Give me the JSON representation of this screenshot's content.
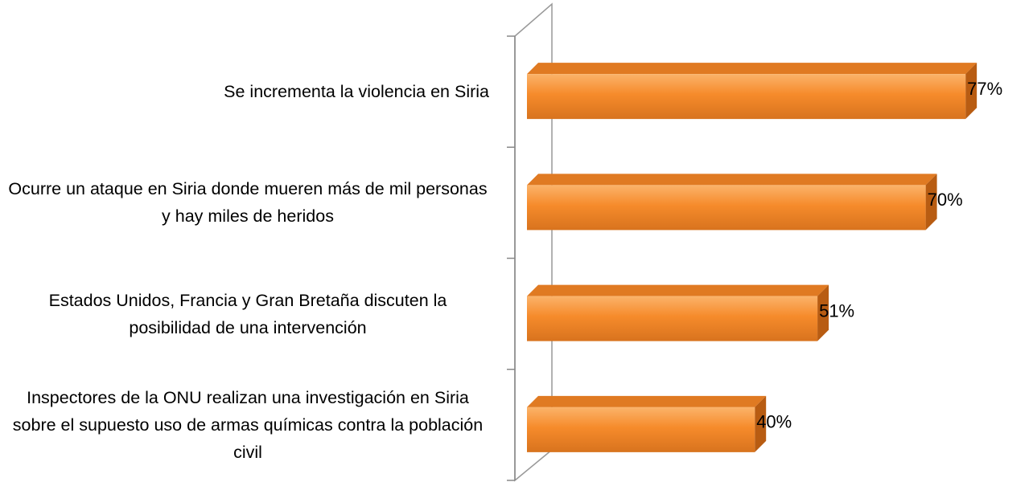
{
  "chart_data": {
    "type": "bar",
    "categories": [
      "Se incrementa la violencia en Siria",
      "Ocurre un ataque en Siria donde mueren más de mil personas y hay miles de heridos",
      "Estados Unidos, Francia y Gran Bretaña discuten la posibilidad de una intervención",
      "Inspectores de la ONU realizan una investigación en Siria sobre el supuesto uso de armas químicas contra la población civil"
    ],
    "values": [
      77,
      70,
      51,
      40
    ],
    "value_labels": [
      "77%",
      "70%",
      "51%",
      "40%"
    ],
    "color": "#f68b2b"
  }
}
